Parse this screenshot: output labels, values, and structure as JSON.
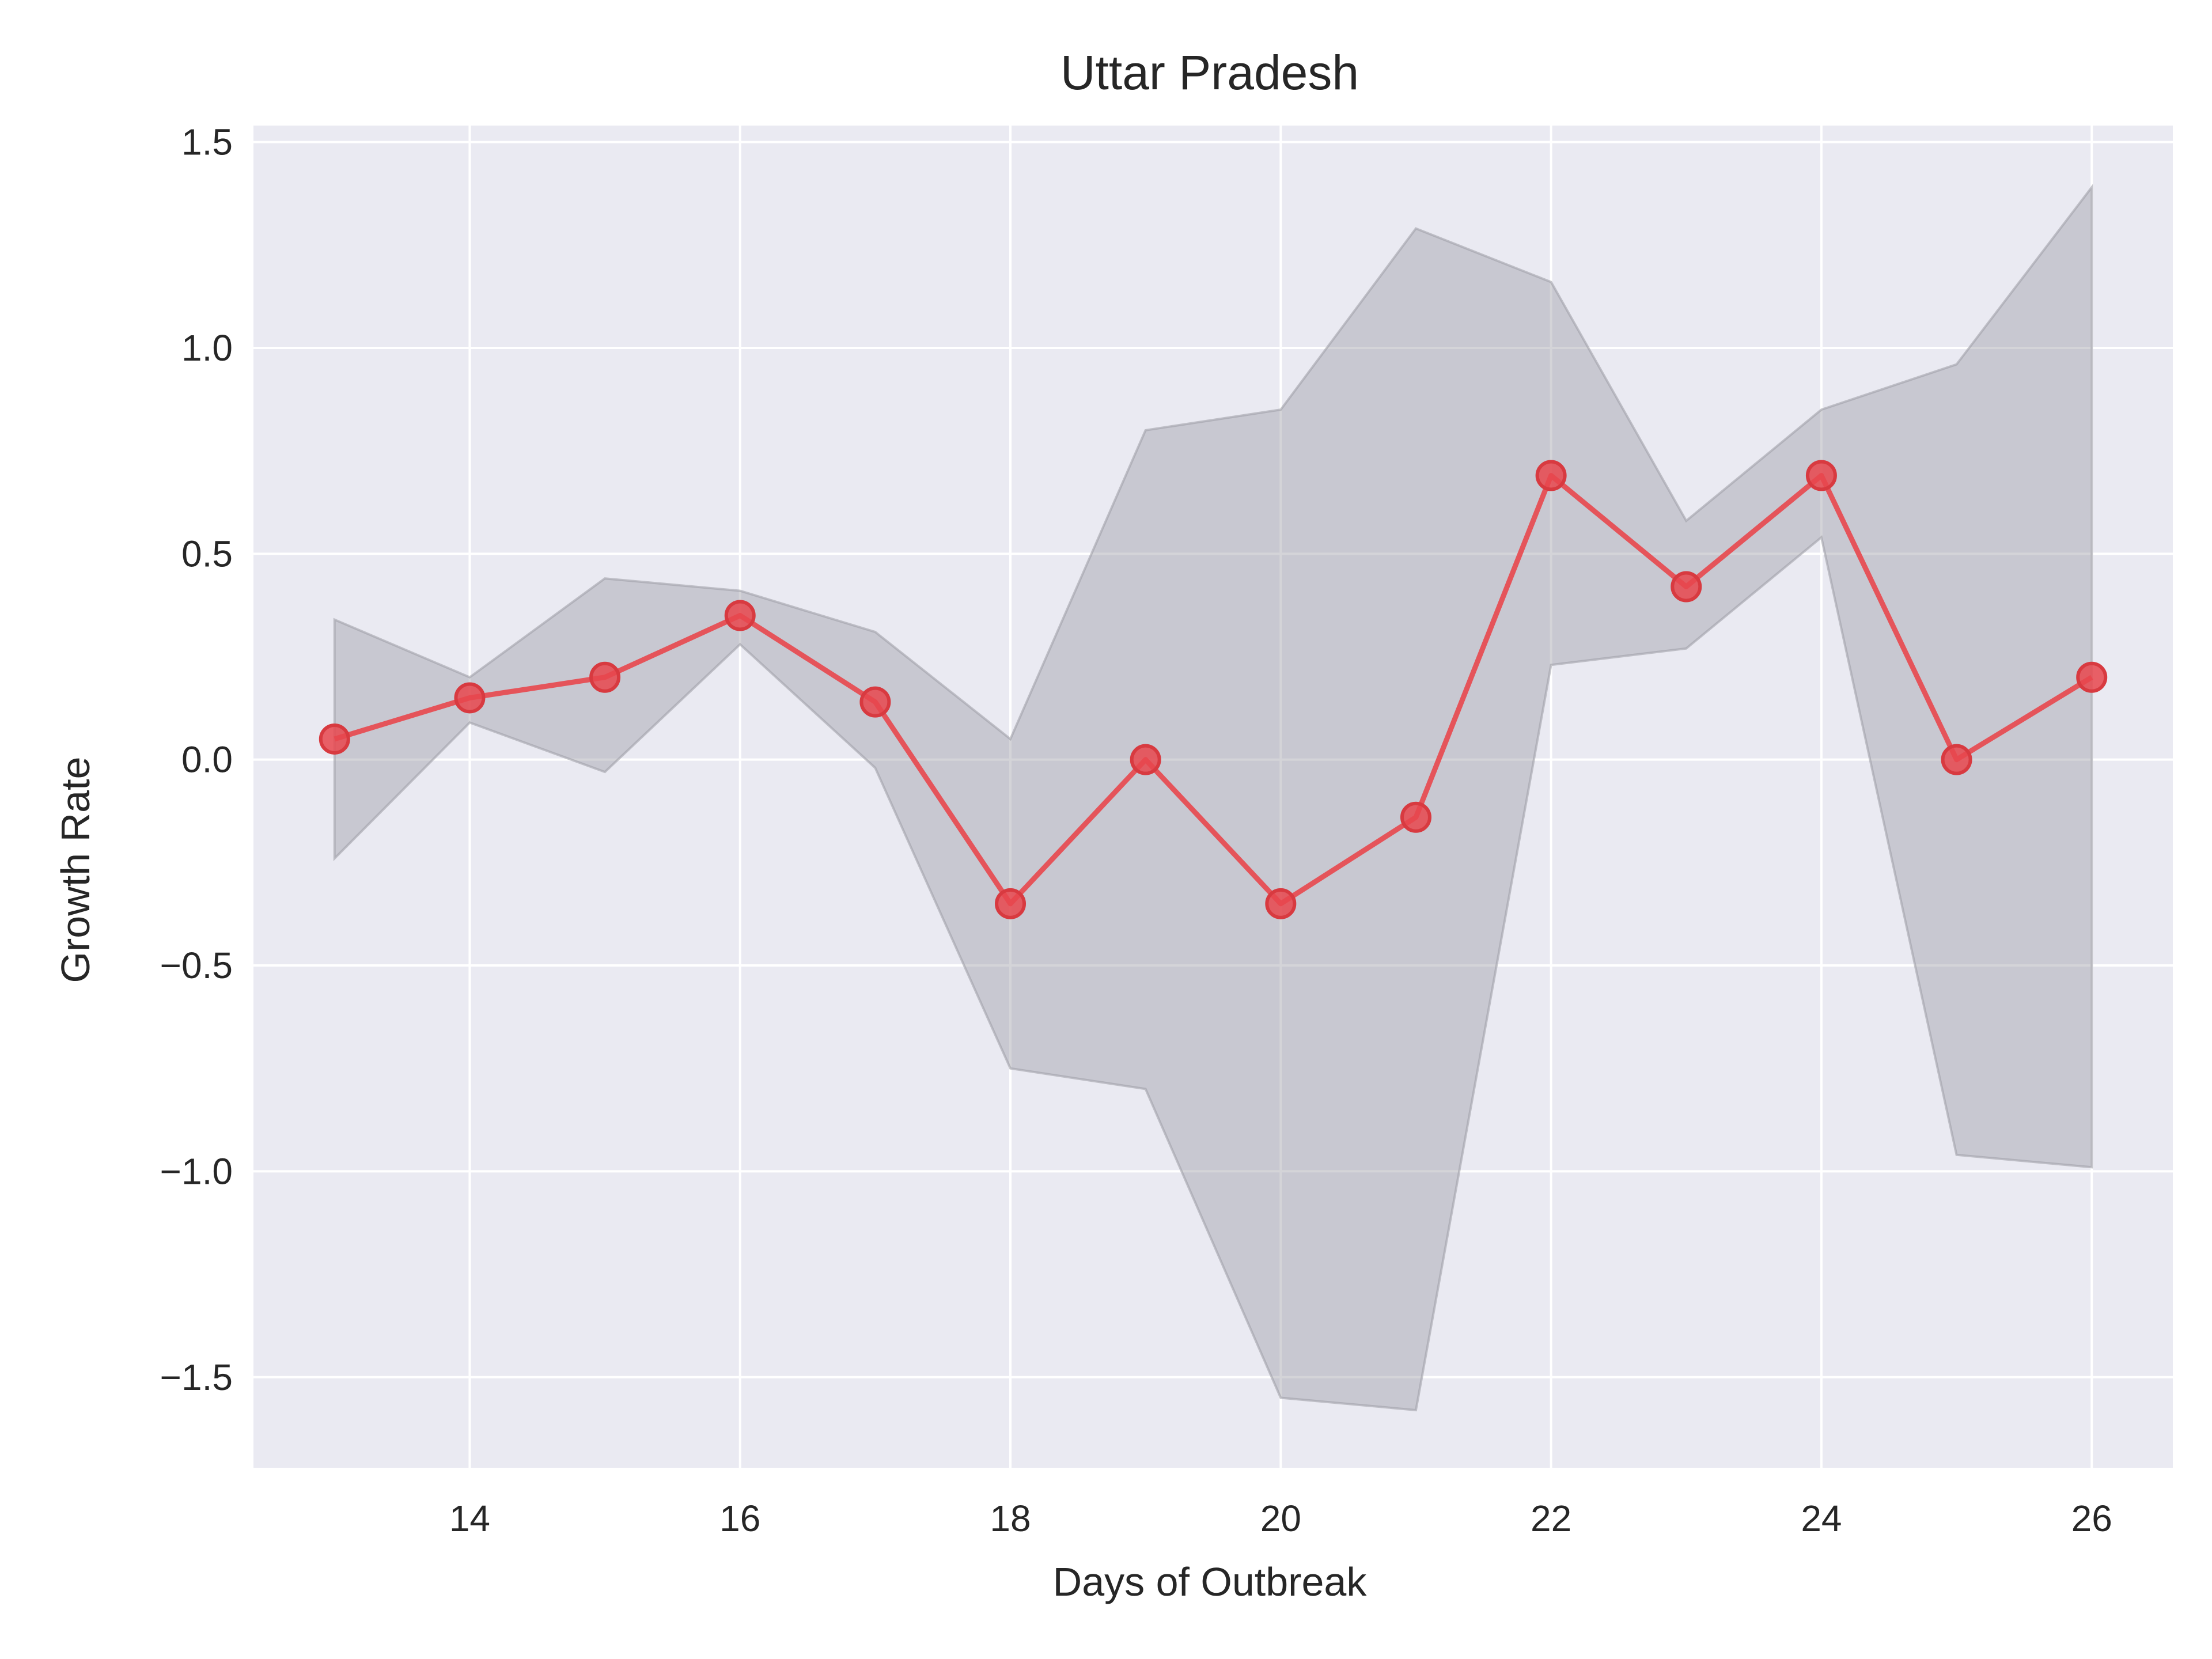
{
  "chart_data": {
    "type": "line",
    "title": "Uttar Pradesh",
    "xlabel": "Days of Outbreak",
    "ylabel": "Growth Rate",
    "xlim": [
      12.4,
      26.6
    ],
    "ylim": [
      -1.72,
      1.54
    ],
    "x_ticks": [
      14,
      16,
      18,
      20,
      22,
      24,
      26
    ],
    "x_tick_labels": [
      "14",
      "16",
      "18",
      "20",
      "22",
      "24",
      "26"
    ],
    "y_ticks": [
      1.5,
      1.0,
      0.5,
      0.0,
      -0.5,
      -1.0,
      -1.5
    ],
    "y_tick_labels": [
      "1.5",
      "1.0",
      "0.5",
      "0.0",
      "−0.5",
      "−1.0",
      "−1.5"
    ],
    "grid": true,
    "series": [
      {
        "x": [
          13,
          14,
          15,
          16,
          17,
          18,
          19,
          20,
          21,
          22,
          23,
          24,
          25,
          26
        ],
        "values": [
          0.05,
          0.15,
          0.2,
          0.35,
          0.14,
          -0.35,
          0.0,
          -0.35,
          -0.14,
          0.69,
          0.42,
          0.69,
          0.0,
          0.2
        ],
        "color": "#e8474d"
      }
    ],
    "band": {
      "x": [
        13,
        14,
        15,
        16,
        17,
        18,
        19,
        20,
        21,
        22,
        23,
        24,
        25,
        26
      ],
      "upper": [
        0.34,
        0.2,
        0.44,
        0.41,
        0.31,
        0.05,
        0.8,
        0.85,
        1.29,
        1.16,
        0.58,
        0.85,
        0.96,
        1.39
      ],
      "lower": [
        -0.24,
        0.09,
        -0.03,
        0.28,
        -0.02,
        -0.75,
        -0.8,
        -1.55,
        -1.58,
        0.23,
        0.27,
        0.54,
        -0.96,
        -0.99
      ],
      "color": "#a0a0a8"
    },
    "colors": {
      "plot_background": "#eaeaf2",
      "grid": "#ffffff",
      "line": "#e8474d",
      "band": "#a0a0a8"
    }
  }
}
